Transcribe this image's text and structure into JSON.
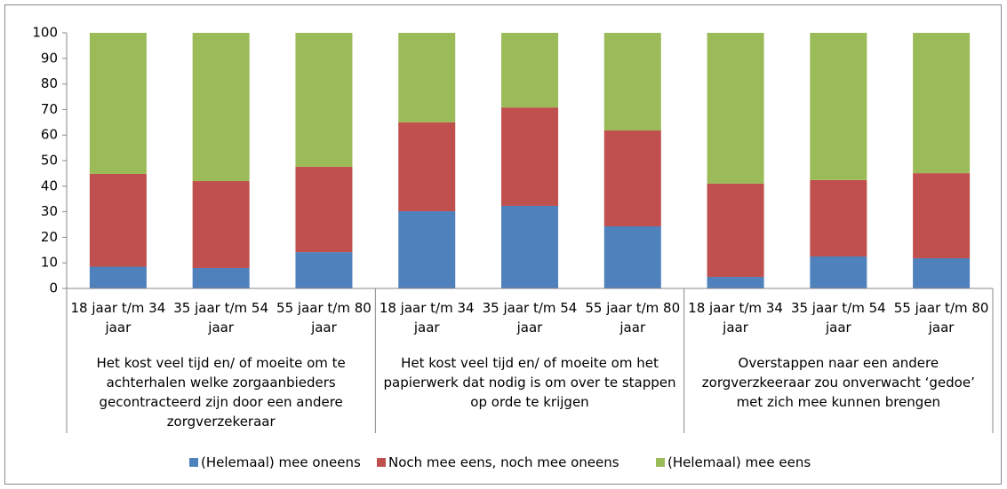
{
  "chart_data": {
    "type": "stacked_bar",
    "groups": [
      {
        "label": "Het kost veel tijd en/ of moeite om te achterhalen welke zorgaanbieders gecontracteerd zijn door een andere zorgverzekeraar",
        "categories": [
          "18 jaar t/m 34 jaar",
          "35 jaar t/m 54 jaar",
          "55 jaar t/m 80 jaar"
        ]
      },
      {
        "label": "Het kost veel tijd en/ of moeite om het papierwerk dat nodig is om over te stappen op orde te krijgen",
        "categories": [
          "18 jaar t/m 34 jaar",
          "35 jaar t/m 54 jaar",
          "55 jaar t/m 80 jaar"
        ]
      },
      {
        "label": "Overstappen naar een andere zorgverzkeeraar zou onverwacht ‘gedoe’ met zich mee kunnen brengen",
        "categories": [
          "18 jaar t/m 34 jaar",
          "35 jaar t/m 54 jaar",
          "55 jaar t/m 80 jaar"
        ]
      }
    ],
    "series": [
      {
        "name": "(Helemaal) mee oneens",
        "color": "#4f81bd",
        "values": [
          8.5,
          8,
          14.2,
          30.2,
          32.3,
          24.3,
          4.5,
          12.5,
          11.8
        ]
      },
      {
        "name": "Noch mee eens, noch mee oneens",
        "color": "#c0504d",
        "values": [
          36.3,
          34,
          33.4,
          34.8,
          38.5,
          37.5,
          36.5,
          29.9,
          33.3
        ]
      },
      {
        "name": "(Helemaal) mee eens",
        "color": "#9bbb59",
        "values": [
          55.2,
          58,
          52.4,
          35,
          29.2,
          38.2,
          59,
          57.6,
          54.9
        ]
      }
    ],
    "ylim": [
      0,
      100
    ],
    "yticks": [
      0,
      10,
      20,
      30,
      40,
      50,
      60,
      70,
      80,
      90,
      100
    ],
    "grid": false,
    "legend": "bottom"
  }
}
